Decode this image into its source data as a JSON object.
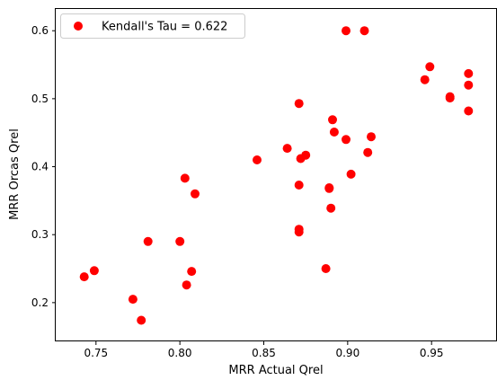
{
  "chart_data": {
    "type": "scatter",
    "title": "",
    "xlabel": "MRR Actual Qrel",
    "ylabel": "MRR Orcas Qrel",
    "xlim": [
      0.726,
      0.989
    ],
    "ylim": [
      0.143,
      0.632
    ],
    "xticks": [
      "0.75",
      "0.80",
      "0.85",
      "0.90",
      "0.95"
    ],
    "yticks": [
      "0.2",
      "0.3",
      "0.4",
      "0.5",
      "0.6"
    ],
    "grid": false,
    "legend_position": "top-left",
    "series": [
      {
        "name": "Kendall's Tau = 0.622",
        "color": "#ff0000",
        "points": [
          [
            0.743,
            0.238
          ],
          [
            0.749,
            0.247
          ],
          [
            0.772,
            0.205
          ],
          [
            0.777,
            0.174
          ],
          [
            0.781,
            0.29
          ],
          [
            0.8,
            0.29
          ],
          [
            0.803,
            0.383
          ],
          [
            0.804,
            0.226
          ],
          [
            0.807,
            0.246
          ],
          [
            0.809,
            0.36
          ],
          [
            0.846,
            0.41
          ],
          [
            0.864,
            0.427
          ],
          [
            0.871,
            0.493
          ],
          [
            0.871,
            0.373
          ],
          [
            0.871,
            0.308
          ],
          [
            0.871,
            0.304
          ],
          [
            0.872,
            0.412
          ],
          [
            0.875,
            0.417
          ],
          [
            0.887,
            0.25
          ],
          [
            0.889,
            0.369
          ],
          [
            0.889,
            0.368
          ],
          [
            0.89,
            0.339
          ],
          [
            0.891,
            0.469
          ],
          [
            0.892,
            0.451
          ],
          [
            0.899,
            0.6
          ],
          [
            0.899,
            0.44
          ],
          [
            0.902,
            0.389
          ],
          [
            0.91,
            0.6
          ],
          [
            0.912,
            0.421
          ],
          [
            0.914,
            0.444
          ],
          [
            0.946,
            0.528
          ],
          [
            0.949,
            0.547
          ],
          [
            0.961,
            0.503
          ],
          [
            0.961,
            0.501
          ],
          [
            0.972,
            0.537
          ],
          [
            0.972,
            0.52
          ],
          [
            0.972,
            0.482
          ]
        ]
      }
    ]
  }
}
